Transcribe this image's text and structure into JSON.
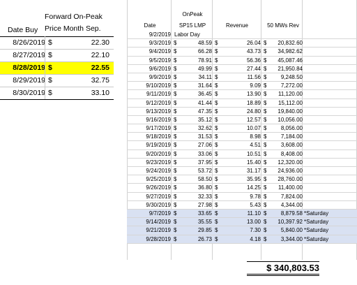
{
  "left_table": {
    "header": {
      "date_buy": "Date Buy",
      "price_line1": "Forward On-Peak",
      "price_line2": "Price Month Sep."
    },
    "rows": [
      {
        "date": "8/26/2019",
        "currency": "$",
        "price": "22.30",
        "highlight": false
      },
      {
        "date": "8/27/2019",
        "currency": "$",
        "price": "22.10",
        "highlight": false
      },
      {
        "date": "8/28/2019",
        "currency": "$",
        "price": "22.55",
        "highlight": true
      },
      {
        "date": "8/29/2019",
        "currency": "$",
        "price": "32.75",
        "highlight": false
      },
      {
        "date": "8/30/2019",
        "currency": "$",
        "price": "33.10",
        "highlight": false
      }
    ],
    "highlight_color": "#ffff00"
  },
  "right_table": {
    "header": {
      "date": "Date",
      "lmp_line1": "OnPeak",
      "lmp_line2": "SP15 LMP",
      "revenue": "Revenue",
      "mw_rev": "50 MWs Rev"
    },
    "holiday_row": {
      "date": "9/2/2019",
      "label": "Labor Day"
    },
    "rows": [
      {
        "date": "9/3/2019",
        "lmp": "48.59",
        "revenue": "26.04",
        "mw_rev": "20,832.60",
        "note": ""
      },
      {
        "date": "9/4/2019",
        "lmp": "66.28",
        "revenue": "43.73",
        "mw_rev": "34,982.62",
        "note": ""
      },
      {
        "date": "9/5/2019",
        "lmp": "78.91",
        "revenue": "56.36",
        "mw_rev": "45,087.46",
        "note": ""
      },
      {
        "date": "9/6/2019",
        "lmp": "49.99",
        "revenue": "27.44",
        "mw_rev": "21,950.84",
        "note": ""
      },
      {
        "date": "9/9/2019",
        "lmp": "34.11",
        "revenue": "11.56",
        "mw_rev": "9,248.50",
        "note": ""
      },
      {
        "date": "9/10/2019",
        "lmp": "31.64",
        "revenue": "9.09",
        "mw_rev": "7,272.00",
        "note": ""
      },
      {
        "date": "9/11/2019",
        "lmp": "36.45",
        "revenue": "13.90",
        "mw_rev": "11,120.00",
        "note": ""
      },
      {
        "date": "9/12/2019",
        "lmp": "41.44",
        "revenue": "18.89",
        "mw_rev": "15,112.00",
        "note": ""
      },
      {
        "date": "9/13/2019",
        "lmp": "47.35",
        "revenue": "24.80",
        "mw_rev": "19,840.00",
        "note": ""
      },
      {
        "date": "9/16/2019",
        "lmp": "35.12",
        "revenue": "12.57",
        "mw_rev": "10,056.00",
        "note": ""
      },
      {
        "date": "9/17/2019",
        "lmp": "32.62",
        "revenue": "10.07",
        "mw_rev": "8,056.00",
        "note": ""
      },
      {
        "date": "9/18/2019",
        "lmp": "31.53",
        "revenue": "8.98",
        "mw_rev": "7,184.00",
        "note": ""
      },
      {
        "date": "9/19/2019",
        "lmp": "27.06",
        "revenue": "4.51",
        "mw_rev": "3,608.00",
        "note": ""
      },
      {
        "date": "9/20/2019",
        "lmp": "33.06",
        "revenue": "10.51",
        "mw_rev": "8,408.00",
        "note": ""
      },
      {
        "date": "9/23/2019",
        "lmp": "37.95",
        "revenue": "15.40",
        "mw_rev": "12,320.00",
        "note": ""
      },
      {
        "date": "9/24/2019",
        "lmp": "53.72",
        "revenue": "31.17",
        "mw_rev": "24,936.00",
        "note": ""
      },
      {
        "date": "9/25/2019",
        "lmp": "58.50",
        "revenue": "35.95",
        "mw_rev": "28,760.00",
        "note": ""
      },
      {
        "date": "9/26/2019",
        "lmp": "36.80",
        "revenue": "14.25",
        "mw_rev": "11,400.00",
        "note": ""
      },
      {
        "date": "9/27/2019",
        "lmp": "32.33",
        "revenue": "9.78",
        "mw_rev": "7,824.00",
        "note": ""
      },
      {
        "date": "9/30/2019",
        "lmp": "27.98",
        "revenue": "5.43",
        "mw_rev": "4,344.00",
        "note": ""
      },
      {
        "date": "9/7/2019",
        "lmp": "33.65",
        "revenue": "11.10",
        "mw_rev": "8,879.58",
        "note": "*Saturday"
      },
      {
        "date": "9/14/2019",
        "lmp": "35.55",
        "revenue": "13.00",
        "mw_rev": "10,397.92",
        "note": "*Saturday"
      },
      {
        "date": "9/21/2019",
        "lmp": "29.85",
        "revenue": "7.30",
        "mw_rev": "5,840.00",
        "note": "*Saturday"
      },
      {
        "date": "9/28/2019",
        "lmp": "26.73",
        "revenue": "4.18",
        "mw_rev": "3,344.00",
        "note": "*Saturday"
      }
    ],
    "currency": "$",
    "saturday_color": "#d9e1f2",
    "total": "$ 340,803.53"
  }
}
